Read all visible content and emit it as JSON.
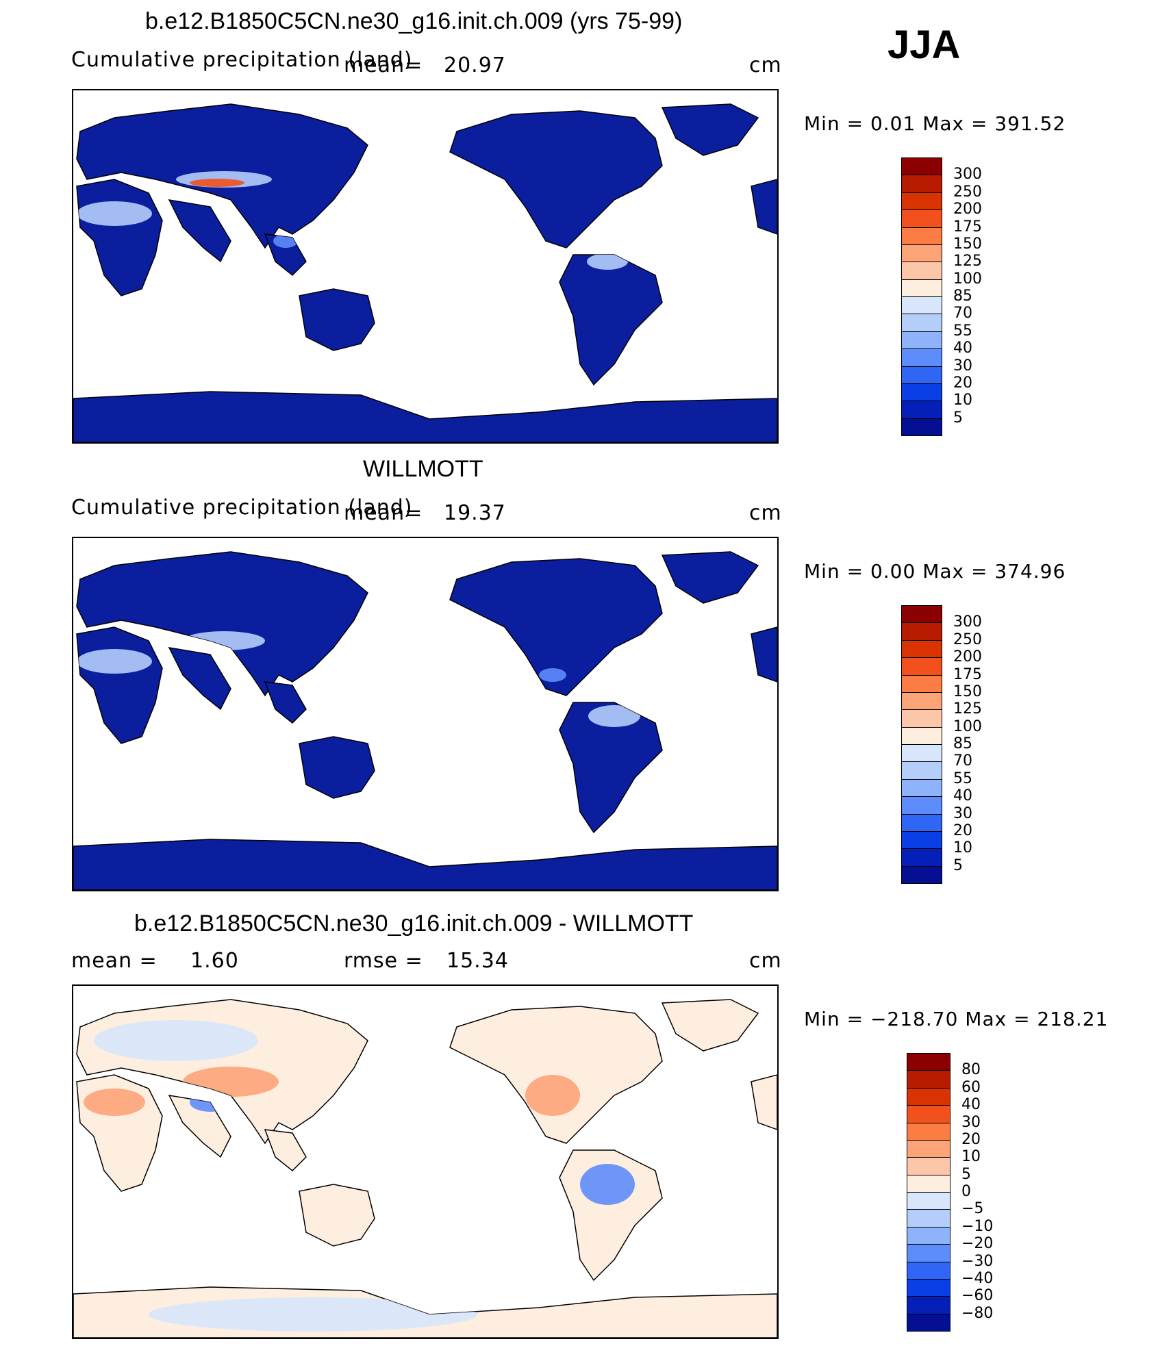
{
  "season": "JJA",
  "panels": [
    {
      "title": "b.e12.B1850C5CN.ne30_g16.init.ch.009 (yrs 75-99)",
      "left_text": "Cumulative precipitation (land)",
      "mean_label": "mean=",
      "mean_value": "20.97",
      "rmse_label": "",
      "rmse_value": "",
      "units": "cm",
      "min_max": "Min =     0.01  Max  =  391.52",
      "kind": "abs",
      "colorbar": {
        "labels": [
          "300",
          "250",
          "200",
          "175",
          "150",
          "125",
          "100",
          "85",
          "70",
          "55",
          "40",
          "30",
          "20",
          "10",
          "5"
        ],
        "colors": [
          "#8b0000",
          "#b81c00",
          "#d83300",
          "#f2501d",
          "#fb7d43",
          "#fca378",
          "#fcc6a8",
          "#fdeedf",
          "#d7e6fb",
          "#b4cdf9",
          "#8eb3fb",
          "#5d8cfb",
          "#2f66f5",
          "#0a3fe6",
          "#0520b8",
          "#040f94"
        ]
      }
    },
    {
      "title": "WILLMOTT",
      "left_text": "Cumulative precipitation (land)",
      "mean_label": "mean=",
      "mean_value": "19.37",
      "rmse_label": "",
      "rmse_value": "",
      "units": "cm",
      "min_max": "Min =     0.00  Max  =  374.96",
      "kind": "abs",
      "colorbar": {
        "labels": [
          "300",
          "250",
          "200",
          "175",
          "150",
          "125",
          "100",
          "85",
          "70",
          "55",
          "40",
          "30",
          "20",
          "10",
          "5"
        ],
        "colors": [
          "#8b0000",
          "#b81c00",
          "#d83300",
          "#f2501d",
          "#fb7d43",
          "#fca378",
          "#fcc6a8",
          "#fdeedf",
          "#d7e6fb",
          "#b4cdf9",
          "#8eb3fb",
          "#5d8cfb",
          "#2f66f5",
          "#0a3fe6",
          "#0520b8",
          "#040f94"
        ]
      }
    },
    {
      "title": "b.e12.B1850C5CN.ne30_g16.init.ch.009 - WILLMOTT",
      "left_text": "",
      "mean_label": "mean  =",
      "mean_value": "1.60",
      "rmse_label": "rmse  =",
      "rmse_value": "15.34",
      "units": "cm",
      "min_max": "Min  =  −218.70  Max  =  218.21",
      "kind": "diff",
      "colorbar": {
        "labels": [
          "80",
          "60",
          "40",
          "30",
          "20",
          "10",
          "5",
          "0",
          "−5",
          "−10",
          "−20",
          "−30",
          "−40",
          "−60",
          "−80"
        ],
        "colors": [
          "#8b0000",
          "#b81c00",
          "#d83300",
          "#f2501d",
          "#fb7d43",
          "#fca378",
          "#fcc6a8",
          "#fdeedf",
          "#d7e6fb",
          "#b4cdf9",
          "#8eb3fb",
          "#5d8cfb",
          "#2f66f5",
          "#0a3fe6",
          "#0520b8",
          "#040f94"
        ]
      }
    }
  ],
  "map_colors": {
    "land_dark": "#0a1e9e",
    "land_mid": "#1a3fe0",
    "land_light": "#5d8cfb",
    "land_pale": "#b4cdf9",
    "wet": "#f2501d",
    "diff_pale": "#fdeedf",
    "diff_blue": "#d7e6fb",
    "diff_red": "#fca378",
    "ocean": "#ffffff",
    "coast": "#000000"
  }
}
